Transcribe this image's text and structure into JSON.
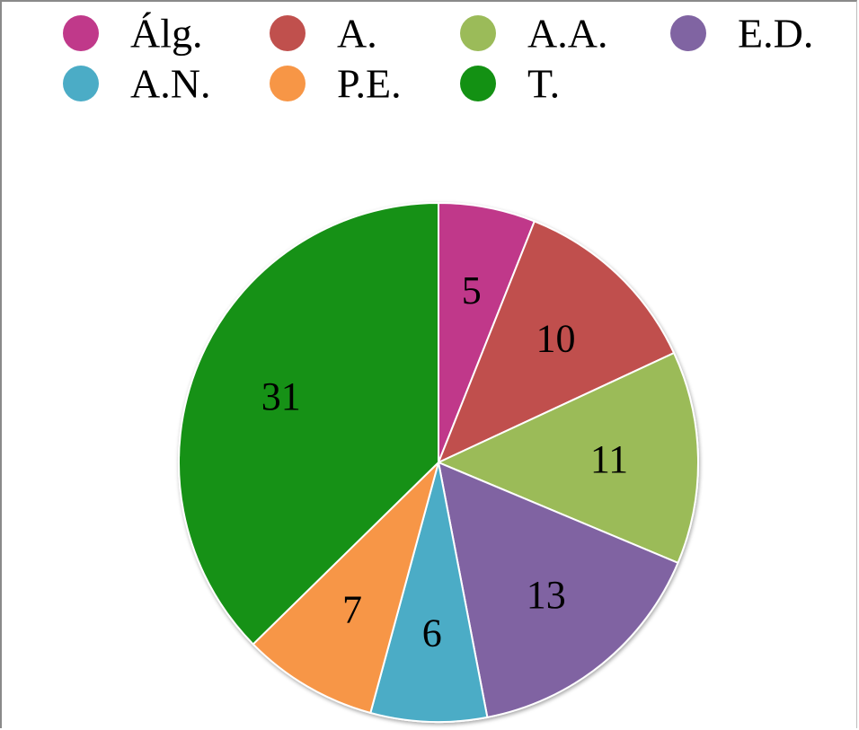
{
  "chart_data": {
    "type": "pie",
    "title": "",
    "categories": [
      "Álg.",
      "A.",
      "A.A.",
      "E.D.",
      "A.N.",
      "P.E.",
      "T."
    ],
    "values": [
      5,
      10,
      11,
      13,
      6,
      7,
      31
    ],
    "colors": [
      "#c0398a",
      "#c0504d",
      "#9bbb59",
      "#8064a2",
      "#4bacc6",
      "#f79646",
      "#139113"
    ],
    "legend_position": "top",
    "data_labels": true
  }
}
